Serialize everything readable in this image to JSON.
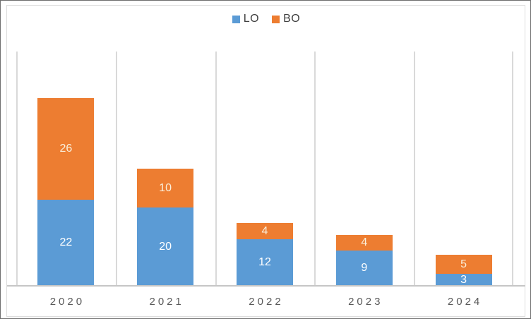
{
  "chart_data": {
    "type": "bar",
    "stacked": true,
    "title": "",
    "categories": [
      "2020",
      "2021",
      "2022",
      "2023",
      "2024"
    ],
    "series": [
      {
        "name": "LO",
        "color": "#5B9BD5",
        "label_color": "#FFFFFF",
        "values": [
          22,
          20,
          12,
          9,
          3
        ]
      },
      {
        "name": "BO",
        "color": "#ED7D31",
        "label_color": "#FAF0DC",
        "values": [
          26,
          10,
          4,
          4,
          5
        ]
      }
    ],
    "ylim": [
      0,
      60
    ],
    "xlabel": "",
    "ylabel": "",
    "legend_position": "top-center",
    "legend_entries": [
      "LO",
      "BO"
    ],
    "gridlines": "vertical-category-boundaries",
    "data_labels": true
  },
  "colors": {
    "background": "#FFFFFF",
    "outer_border": "#6E6E6E",
    "chart_border": "#DDDDDD",
    "gridline": "#D9D9D9",
    "axis_line": "#C6C6C6",
    "axis_label": "#595959",
    "legend_text": "#404040"
  }
}
